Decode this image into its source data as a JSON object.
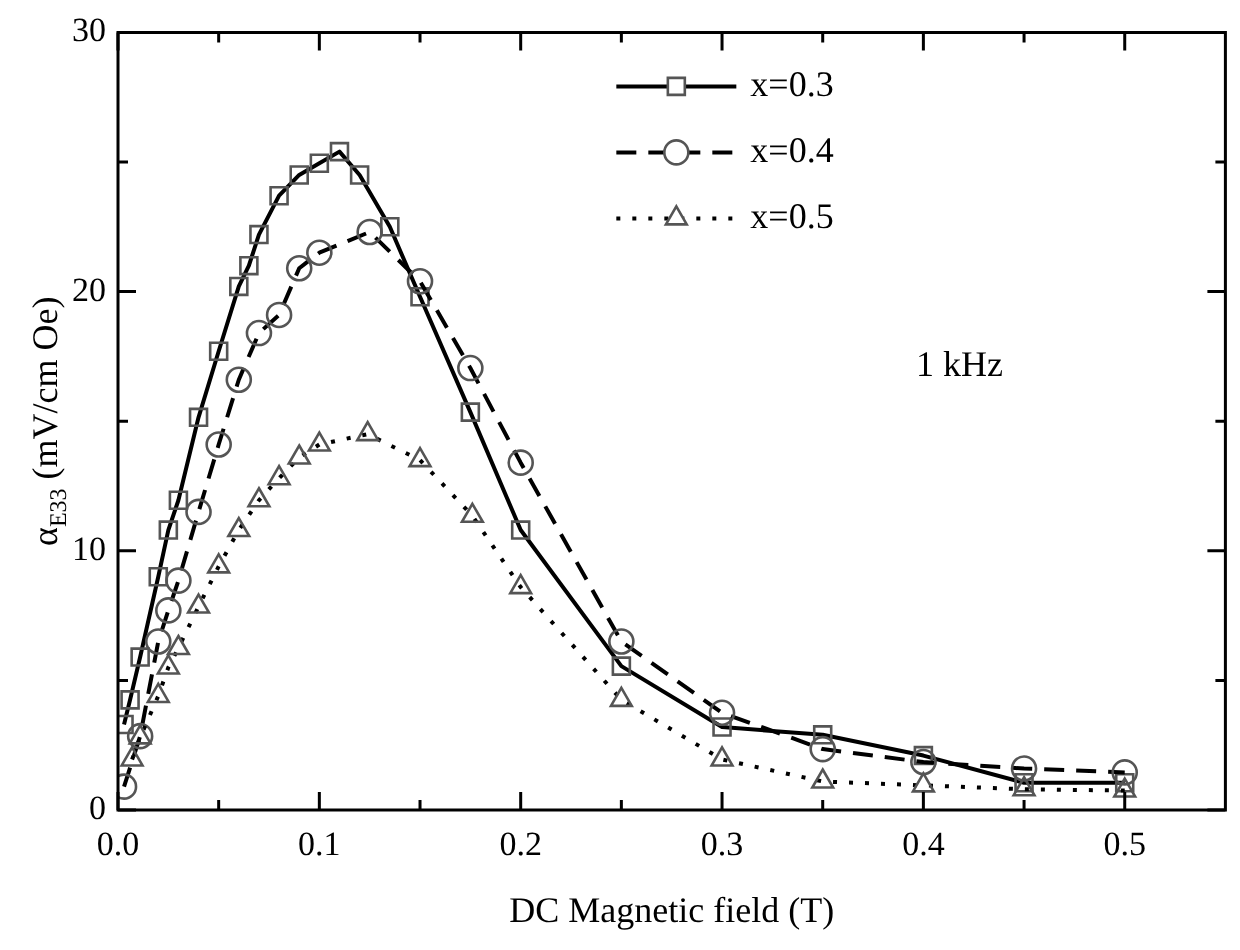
{
  "chart_data": {
    "type": "line",
    "xlabel": "DC Magnetic field (T)",
    "ylabel": "α$_{E33}$ (mV/cm Oe)",
    "annotations": [
      "1 kHz"
    ],
    "xlim": [
      0,
      0.55
    ],
    "ylim": [
      0,
      30
    ],
    "xticks": [
      {
        "value": 0,
        "label": "0.0"
      },
      {
        "value": 0.05,
        "label": null
      },
      0.1,
      {
        "value": 0.15,
        "label": null
      },
      0.2,
      {
        "value": 0.25,
        "label": null
      },
      0.3,
      {
        "value": 0.35,
        "label": null
      },
      0.4,
      {
        "value": 0.45,
        "label": null
      },
      0.5
    ],
    "yticks": [
      0,
      {
        "value": 5,
        "label": null
      },
      10,
      {
        "value": 15,
        "label": null
      },
      20,
      {
        "value": 25,
        "label": null
      },
      30
    ],
    "grid": false,
    "legend": "top right",
    "series": [
      {
        "name": "x=0.3",
        "color": "#000000",
        "marker": "square",
        "line_style": "solid",
        "x": [
          0.003,
          0.006,
          0.011,
          0.02,
          0.025,
          0.03,
          0.04,
          0.05,
          0.06,
          0.065,
          0.07,
          0.08,
          0.09,
          0.1,
          0.11,
          0.12,
          0.135,
          0.15,
          0.175,
          0.2,
          0.25,
          0.3,
          0.35,
          0.4,
          0.45,
          0.5
        ],
        "values": [
          3.3,
          4.25,
          5.9,
          9.0,
          10.8,
          11.95,
          15.15,
          17.7,
          20.2,
          21.0,
          22.2,
          23.7,
          24.5,
          24.95,
          25.4,
          24.5,
          22.5,
          19.8,
          15.35,
          10.8,
          5.55,
          3.2,
          2.9,
          2.1,
          1.05,
          1.05
        ]
      },
      {
        "name": "x=0.4",
        "color": "#000000",
        "marker": "circle",
        "line_style": "dashed",
        "x": [
          0.003,
          0.011,
          0.02,
          0.025,
          0.03,
          0.04,
          0.05,
          0.06,
          0.07,
          0.08,
          0.09,
          0.1,
          0.125,
          0.15,
          0.175,
          0.2,
          0.25,
          0.3,
          0.35,
          0.4,
          0.45,
          0.5
        ],
        "values": [
          0.9,
          2.85,
          6.5,
          7.7,
          8.85,
          11.5,
          14.1,
          16.6,
          18.4,
          19.1,
          20.9,
          21.5,
          22.3,
          20.4,
          17.05,
          13.4,
          6.5,
          3.75,
          2.35,
          1.85,
          1.6,
          1.45
        ]
      },
      {
        "name": "x=0.5",
        "color": "#000000",
        "marker": "triangle",
        "line_style": "dotted",
        "x": [
          0.007,
          0.011,
          0.02,
          0.025,
          0.03,
          0.04,
          0.05,
          0.06,
          0.07,
          0.08,
          0.09,
          0.1,
          0.124,
          0.15,
          0.176,
          0.2,
          0.25,
          0.3,
          0.35,
          0.4,
          0.45,
          0.5
        ],
        "values": [
          1.95,
          2.8,
          4.4,
          5.5,
          6.25,
          7.85,
          9.4,
          10.8,
          11.95,
          12.8,
          13.6,
          14.1,
          14.5,
          13.5,
          11.35,
          8.6,
          4.25,
          1.95,
          1.1,
          0.95,
          0.8,
          0.75
        ]
      }
    ]
  }
}
